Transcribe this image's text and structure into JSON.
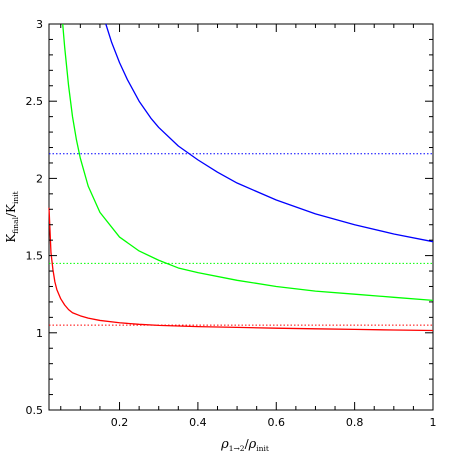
{
  "chart_data": {
    "type": "line",
    "xlabel": {
      "main": "ρ",
      "sub": "1→2",
      "slash": "/",
      "main2": "ρ",
      "sub2": "init"
    },
    "ylabel": {
      "main": "K",
      "sub": "final",
      "slash": "/",
      "main2": "K",
      "sub2": "init"
    },
    "xlim": [
      0.02,
      1.0
    ],
    "ylim": [
      0.5,
      3.0
    ],
    "x_ticks": [
      0.2,
      0.4,
      0.6,
      0.8,
      1.0
    ],
    "x_tick_labels": [
      "0.2",
      "0.4",
      "0.6",
      "0.8",
      "1"
    ],
    "y_ticks": [
      0.5,
      1.0,
      1.5,
      2.0,
      2.5,
      3.0
    ],
    "y_tick_labels": [
      "0.5",
      "1",
      "1.5",
      "2",
      "2.5",
      "3"
    ],
    "grid": false,
    "legend": "none",
    "series": [
      {
        "color": "#ff0000",
        "x": [
          0.02,
          0.025,
          0.03,
          0.035,
          0.04,
          0.05,
          0.06,
          0.07,
          0.08,
          0.1,
          0.12,
          0.15,
          0.2,
          0.25,
          0.3,
          0.4,
          0.5,
          0.6,
          0.7,
          0.8,
          0.9,
          1.0
        ],
        "y": [
          1.81,
          1.52,
          1.41,
          1.33,
          1.28,
          1.22,
          1.18,
          1.15,
          1.13,
          1.11,
          1.095,
          1.08,
          1.065,
          1.055,
          1.048,
          1.04,
          1.035,
          1.03,
          1.026,
          1.022,
          1.018,
          1.015
        ]
      },
      {
        "color": "#00ff00",
        "x": [
          0.055,
          0.06,
          0.07,
          0.08,
          0.09,
          0.1,
          0.12,
          0.15,
          0.2,
          0.25,
          0.3,
          0.35,
          0.4,
          0.5,
          0.6,
          0.7,
          0.8,
          0.9,
          1.0
        ],
        "y": [
          3.0,
          2.85,
          2.6,
          2.4,
          2.25,
          2.13,
          1.95,
          1.78,
          1.62,
          1.53,
          1.47,
          1.42,
          1.39,
          1.34,
          1.3,
          1.27,
          1.25,
          1.23,
          1.21
        ]
      },
      {
        "color": "#0000ff",
        "x": [
          0.165,
          0.18,
          0.2,
          0.22,
          0.25,
          0.28,
          0.3,
          0.35,
          0.4,
          0.45,
          0.5,
          0.6,
          0.7,
          0.8,
          0.9,
          1.0
        ],
        "y": [
          3.0,
          2.88,
          2.75,
          2.64,
          2.5,
          2.39,
          2.33,
          2.21,
          2.12,
          2.04,
          1.97,
          1.86,
          1.77,
          1.7,
          1.64,
          1.59
        ]
      }
    ],
    "reference_lines": [
      {
        "y": 1.05,
        "color": "#ff0000",
        "style": "dotted"
      },
      {
        "y": 1.45,
        "color": "#00ff00",
        "style": "dotted"
      },
      {
        "y": 2.16,
        "color": "#0000ff",
        "style": "dotted"
      }
    ]
  }
}
